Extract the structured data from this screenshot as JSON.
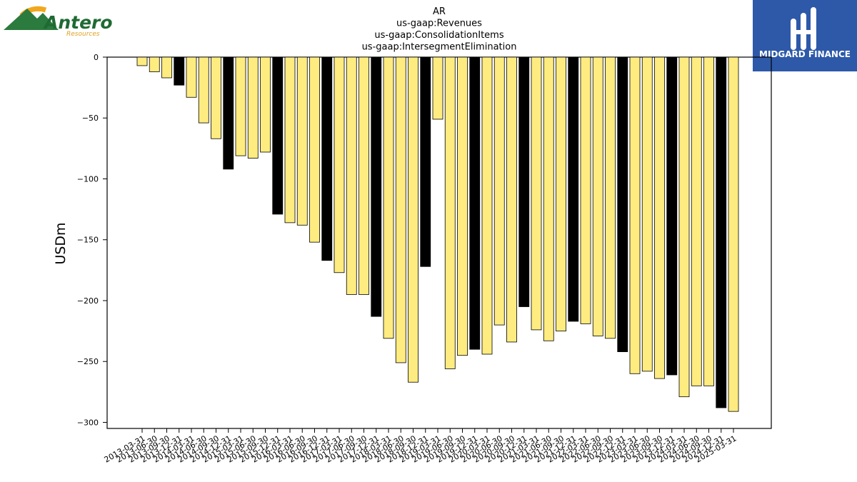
{
  "company_logo": {
    "name": "Antero",
    "sub": "Resources",
    "colors": {
      "mountain": "#2b7a3e",
      "sun": "#f2a71b",
      "text": "#1f6a33"
    }
  },
  "brand_logo": {
    "name": "MIDGARD FINANCE",
    "bg_color": "#2e59a8"
  },
  "chart_data": {
    "type": "bar",
    "title": [
      "AR",
      "us-gaap:Revenues",
      "us-gaap:ConsolidationItems",
      "us-gaap:IntersegmentElimination"
    ],
    "xlabel": "",
    "ylabel": "USDm",
    "ylim": [
      -305,
      0
    ],
    "yticks": [
      0,
      -50,
      -100,
      -150,
      -200,
      -250,
      -300
    ],
    "grid": false,
    "colors": {
      "quarter": "#ffec80",
      "year_end": "#000000",
      "edge": "#000000"
    },
    "categories": [
      "2013-03-31",
      "2013-06-30",
      "2013-09-30",
      "2013-12-31",
      "2014-03-31",
      "2014-06-30",
      "2014-09-30",
      "2014-12-31",
      "2015-03-31",
      "2015-06-30",
      "2015-09-30",
      "2015-12-31",
      "2016-03-31",
      "2016-06-30",
      "2016-09-30",
      "2016-12-31",
      "2017-03-31",
      "2017-06-30",
      "2017-09-30",
      "2017-12-31",
      "2018-03-31",
      "2018-06-30",
      "2018-09-30",
      "2018-12-31",
      "2019-03-31",
      "2019-06-30",
      "2019-09-30",
      "2019-12-31",
      "2020-03-31",
      "2020-06-30",
      "2020-09-30",
      "2020-12-31",
      "2021-03-31",
      "2021-06-30",
      "2021-09-30",
      "2021-12-31",
      "2022-03-31",
      "2022-06-30",
      "2022-09-30",
      "2022-12-31",
      "2023-03-31",
      "2023-06-30",
      "2023-09-30",
      "2023-12-31",
      "2024-03-31",
      "2024-06-30",
      "2024-09-30",
      "2024-12-31",
      "2025-03-31"
    ],
    "values": [
      -7,
      -12,
      -17,
      -23,
      -33,
      -54,
      -67,
      -92,
      -81,
      -83,
      -78,
      -129,
      -136,
      -138,
      -152,
      -167,
      -177,
      -195,
      -195,
      -213,
      -231,
      -251,
      -267,
      -172,
      -51,
      -256,
      -245,
      -240,
      -244,
      -220,
      -234,
      -205,
      -224,
      -233,
      -225,
      -217,
      -219,
      -229,
      -231,
      -242,
      -260,
      -258,
      -264,
      -261,
      -279,
      -270,
      -270,
      -288,
      -291
    ]
  }
}
